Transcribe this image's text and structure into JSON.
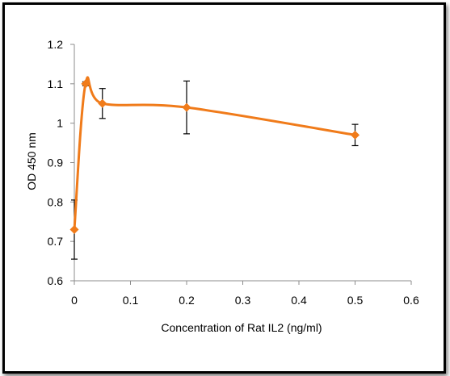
{
  "chart_data": {
    "type": "scatter",
    "title": "",
    "xlabel": "Concentration of Rat IL2 (ng/ml)",
    "ylabel": "OD 450 nm",
    "xlim": [
      0,
      0.6
    ],
    "ylim": [
      0.6,
      1.2
    ],
    "x_ticks": [
      "0",
      "0.1",
      "0.2",
      "0.3",
      "0.4",
      "0.5",
      "0.6"
    ],
    "y_ticks": [
      "0.6",
      "0.7",
      "0.8",
      "0.9",
      "1",
      "1.1",
      "1.2"
    ],
    "grid": false,
    "legend": "none",
    "line_style": "smoothed",
    "series_color": "#f07b1a",
    "series": [
      {
        "x": [
          0,
          0.02,
          0.05,
          0.2,
          0.5
        ],
        "y": [
          0.73,
          1.1,
          1.05,
          1.04,
          0.97
        ],
        "error": [
          0.075,
          0.005,
          0.038,
          0.067,
          0.027
        ]
      }
    ]
  }
}
